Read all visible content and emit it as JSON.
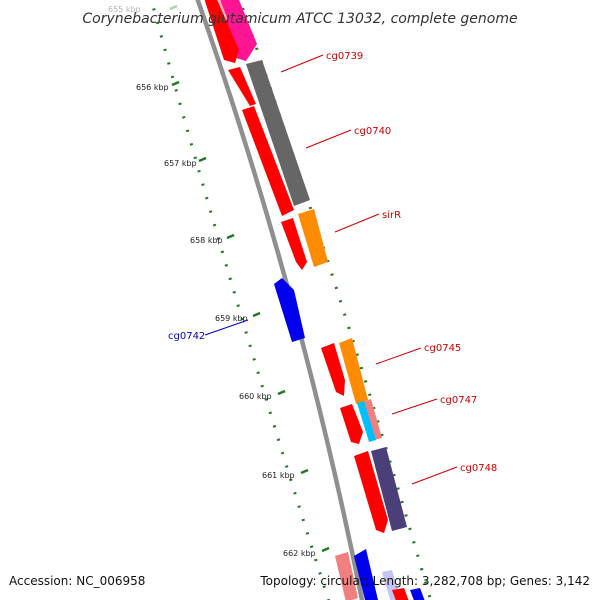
{
  "title": "Corynebacterium glutamicum ATCC 13032, complete genome",
  "footer": {
    "accession": "Accession: NC_006958",
    "topology": "Topology: circular; Length: 3,282,708 bp; Genes: 3,142"
  },
  "ticks": [
    {
      "label": "655 kbp",
      "faint": true
    },
    {
      "label": "656 kbp"
    },
    {
      "label": "657 kbp"
    },
    {
      "label": "658 kbp"
    },
    {
      "label": "659 kbp"
    },
    {
      "label": "660 kbp"
    },
    {
      "label": "661 kbp"
    },
    {
      "label": "662 kbp"
    }
  ],
  "gene_labels": [
    {
      "text": "cg0739",
      "color": "#cc0000"
    },
    {
      "text": "cg0740",
      "color": "#cc0000"
    },
    {
      "text": "sirR",
      "color": "#cc0000"
    },
    {
      "text": "cg0742",
      "color": "#0000cc"
    },
    {
      "text": "cg0745",
      "color": "#cc0000"
    },
    {
      "text": "cg0747",
      "color": "#cc0000"
    },
    {
      "text": "cg0748",
      "color": "#cc0000"
    }
  ],
  "colors": {
    "backbone": "#8f8f8f",
    "tick": "#1e7a1e",
    "cds": "#ff0000",
    "blue_gene": "#0000ee",
    "gray_gene": "#666666",
    "orange_gene": "#ff8c00",
    "magenta_gene": "#ff1493",
    "pink_gene": "#f08080",
    "cyan_gene": "#00bfff",
    "purple_gene": "#4b3f7a"
  }
}
